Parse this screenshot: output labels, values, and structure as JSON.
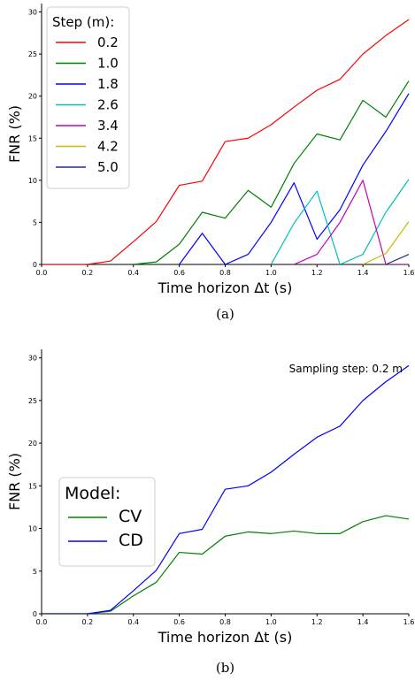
{
  "chart_data": [
    {
      "type": "line",
      "caption": "(a)",
      "xlabel": "Time horizon Δt (s)",
      "ylabel": "FNR (%)",
      "xlim": [
        0.0,
        1.6
      ],
      "ylim": [
        0,
        31
      ],
      "xticks": [
        "0.0",
        "0.2",
        "0.4",
        "0.6",
        "0.8",
        "1.0",
        "1.2",
        "1.4",
        "1.6"
      ],
      "yticks": [
        "0",
        "5",
        "10",
        "15",
        "20",
        "25",
        "30"
      ],
      "grid": false,
      "legend": {
        "title": "Step (m):",
        "placement": "top-left"
      },
      "series": [
        {
          "name": "0.2",
          "color": "#ff0000",
          "x": [
            0.0,
            0.1,
            0.2,
            0.3,
            0.4,
            0.5,
            0.6,
            0.7,
            0.8,
            0.9,
            1.0,
            1.1,
            1.2,
            1.3,
            1.4,
            1.5,
            1.6
          ],
          "y": [
            0,
            0,
            0,
            0.4,
            2.7,
            5.1,
            9.4,
            9.9,
            14.6,
            15.0,
            16.6,
            18.7,
            20.7,
            22.0,
            25.0,
            27.2,
            29.1
          ]
        },
        {
          "name": "1.0",
          "color": "#008000",
          "x": [
            0.4,
            0.5,
            0.6,
            0.7,
            0.8,
            0.9,
            1.0,
            1.1,
            1.2,
            1.3,
            1.4,
            1.5,
            1.6
          ],
          "y": [
            0,
            0.3,
            2.4,
            6.2,
            5.5,
            8.8,
            6.8,
            12.0,
            15.5,
            14.8,
            19.5,
            17.5,
            21.8
          ]
        },
        {
          "name": "1.8",
          "color": "#0000ff",
          "x": [
            0.6,
            0.7,
            0.8,
            0.9,
            1.0,
            1.1,
            1.2,
            1.3,
            1.4,
            1.5,
            1.6
          ],
          "y": [
            0,
            3.7,
            0,
            1.2,
            5.0,
            9.7,
            3.0,
            6.5,
            11.8,
            15.8,
            20.3
          ]
        },
        {
          "name": "2.6",
          "color": "#00bfbf",
          "x": [
            1.0,
            1.1,
            1.2,
            1.3,
            1.4,
            1.5,
            1.6
          ],
          "y": [
            0,
            4.9,
            8.7,
            0,
            1.2,
            6.2,
            10.1
          ]
        },
        {
          "name": "3.4",
          "color": "#bf00bf",
          "x": [
            1.1,
            1.2,
            1.3,
            1.4,
            1.5,
            1.6
          ],
          "y": [
            0,
            1.2,
            5.0,
            10.0,
            0,
            0
          ]
        },
        {
          "name": "4.2",
          "color": "#bfbf00",
          "x": [
            1.4,
            1.5,
            1.6
          ],
          "y": [
            0,
            1.3,
            5.1
          ]
        },
        {
          "name": "5.0",
          "color": "#1a2f9a",
          "x": [
            1.5,
            1.6
          ],
          "y": [
            0,
            1.2
          ]
        }
      ]
    },
    {
      "type": "line",
      "caption": "(b)",
      "annotation": "Sampling step: 0.2 m",
      "xlabel": "Time horizon Δt (s)",
      "ylabel": "FNR (%)",
      "xlim": [
        0.0,
        1.6
      ],
      "ylim": [
        0,
        31
      ],
      "xticks": [
        "0.0",
        "0.2",
        "0.4",
        "0.6",
        "0.8",
        "1.0",
        "1.2",
        "1.4",
        "1.6"
      ],
      "yticks": [
        "0",
        "5",
        "10",
        "15",
        "20",
        "25",
        "30"
      ],
      "grid": false,
      "legend": {
        "title": "Model:",
        "placement": "upper-left"
      },
      "series": [
        {
          "name": "CV",
          "color": "#008000",
          "x": [
            0.0,
            0.1,
            0.2,
            0.3,
            0.4,
            0.5,
            0.6,
            0.7,
            0.8,
            0.9,
            1.0,
            1.1,
            1.2,
            1.3,
            1.4,
            1.5,
            1.6
          ],
          "y": [
            0,
            0,
            0,
            0.3,
            2.1,
            3.7,
            7.2,
            7.0,
            9.1,
            9.6,
            9.4,
            9.7,
            9.4,
            9.4,
            10.8,
            11.5,
            11.1
          ]
        },
        {
          "name": "CD",
          "color": "#0000ff",
          "x": [
            0.0,
            0.1,
            0.2,
            0.3,
            0.4,
            0.5,
            0.6,
            0.7,
            0.8,
            0.9,
            1.0,
            1.1,
            1.2,
            1.3,
            1.4,
            1.5,
            1.6
          ],
          "y": [
            0,
            0,
            0,
            0.4,
            2.7,
            5.1,
            9.4,
            9.9,
            14.6,
            15.0,
            16.6,
            18.7,
            20.7,
            22.0,
            25.0,
            27.2,
            29.1
          ]
        }
      ]
    }
  ]
}
